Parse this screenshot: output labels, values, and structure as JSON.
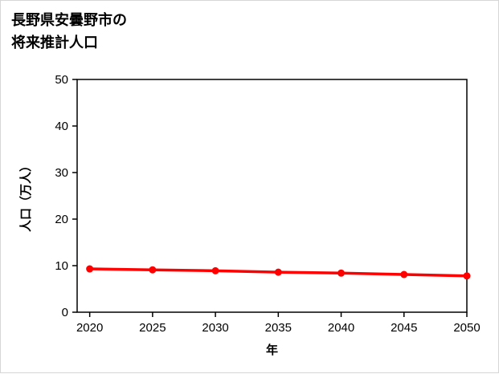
{
  "title": {
    "line1": "長野県安曇野市の",
    "line2": "将来推計人口"
  },
  "chart_data": {
    "type": "line",
    "title": "長野県安曇野市の将来推計人口",
    "x": [
      2020,
      2025,
      2030,
      2035,
      2040,
      2045,
      2050
    ],
    "series": [
      {
        "name": "将来推計人口",
        "values": [
          9.3,
          9.1,
          8.9,
          8.6,
          8.4,
          8.1,
          7.8
        ]
      }
    ],
    "xlabel": "年",
    "ylabel": "人口（万人）",
    "xlim": [
      2019,
      2050
    ],
    "ylim": [
      0,
      50
    ],
    "xticks": [
      2020,
      2025,
      2030,
      2035,
      2040,
      2045,
      2050
    ],
    "yticks": [
      0,
      10,
      20,
      30,
      40,
      50
    ],
    "grid": false,
    "legend_position": "none",
    "line_color": "#ff0000",
    "marker_color": "#ff0000",
    "axis_color": "#000000"
  }
}
